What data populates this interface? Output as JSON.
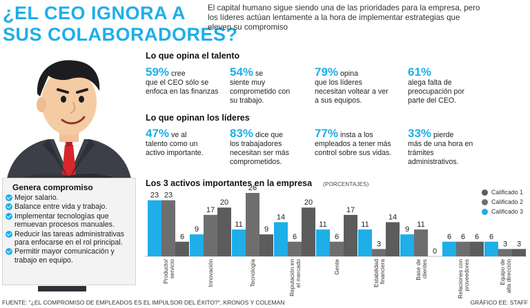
{
  "headline": {
    "line1": "¿EL CEO IGNORA A",
    "line2": "SUS COLABORADORES?"
  },
  "intro": "El capital humano sigue siendo una de las prioridades para la empresa, pero los líderes actúan lentamente a la hora de implementar estrategias que eleven su compromiso",
  "talent": {
    "title": "Lo que opina el talento",
    "items": [
      {
        "pct": "59%",
        "lead": "cree",
        "rest": "que el CEO sólo se enfoca en las finanzas"
      },
      {
        "pct": "54%",
        "lead": "se",
        "rest": "siente muy comprometido con su trabajo."
      },
      {
        "pct": "79%",
        "lead": "opina",
        "rest": "que los líderes necesitan voltear a ver a sus equipos."
      },
      {
        "pct": "61%",
        "lead": "",
        "rest": "alega falta de preocupación por parte del CEO."
      }
    ]
  },
  "leaders": {
    "title": "Lo que opinan los líderes",
    "items": [
      {
        "pct": "47%",
        "lead": "ve al",
        "rest": "talento como un activo importante."
      },
      {
        "pct": "83%",
        "lead": "dice que",
        "rest": "los trabajadores necesitan ser más comprometidos."
      },
      {
        "pct": "77%",
        "lead": "insta a los",
        "rest": "empleados a tener más control sobre sus vidas."
      },
      {
        "pct": "33%",
        "lead": "pierde",
        "rest": "más de una hora en trámites administrativos."
      }
    ]
  },
  "compromiso": {
    "title": "Genera compromiso",
    "items": [
      "Mejor salario.",
      "Balance entre vida y trabajo.",
      "Implementar tecnologías que remuevan procesos manuales.",
      "Reducir las tareas administrativas para enfocarse en el rol principal.",
      "Permitir mayor comunicación y trabajo en equipo."
    ]
  },
  "chart_data": {
    "type": "bar",
    "title": "Los 3 activos importantes en la empresa",
    "subtitle": "(PORCENTAJES)",
    "categories": [
      "Producto/ servicio",
      "Innovación",
      "Tecnología",
      "Reputación en el mercado",
      "Gente",
      "Estabilidad financiera",
      "Base de clientes",
      "Relaciones con proveedores",
      "Equipo de alta dirección"
    ],
    "series": [
      {
        "name": "Calificado 3",
        "color": "#1eaee8",
        "values": [
          23,
          9,
          11,
          14,
          11,
          11,
          9,
          6,
          6
        ]
      },
      {
        "name": "Calificado 2",
        "color": "#6e6e6e",
        "values": [
          23,
          17,
          26,
          6,
          6,
          3,
          11,
          6,
          3
        ]
      },
      {
        "name": "Calificado 1",
        "color": "#5c5c5c",
        "values": [
          6,
          20,
          9,
          20,
          17,
          14,
          0,
          6,
          3
        ]
      }
    ],
    "legend_position": "top-right",
    "ylim": [
      0,
      26
    ],
    "grid": false
  },
  "footer": {
    "source": "FUENTE: \"¿EL COMPROMISO DE EMPLEADOS ES EL IMPULSOR DEL ÉXITO?\", KRONOS Y COLEMAN",
    "credit": "GRÁFICO EE: STAFF"
  },
  "colors": {
    "accent": "#1eaee8",
    "dark": "#5c5c5c",
    "mid": "#6e6e6e",
    "panel": "#f3f3f3"
  }
}
